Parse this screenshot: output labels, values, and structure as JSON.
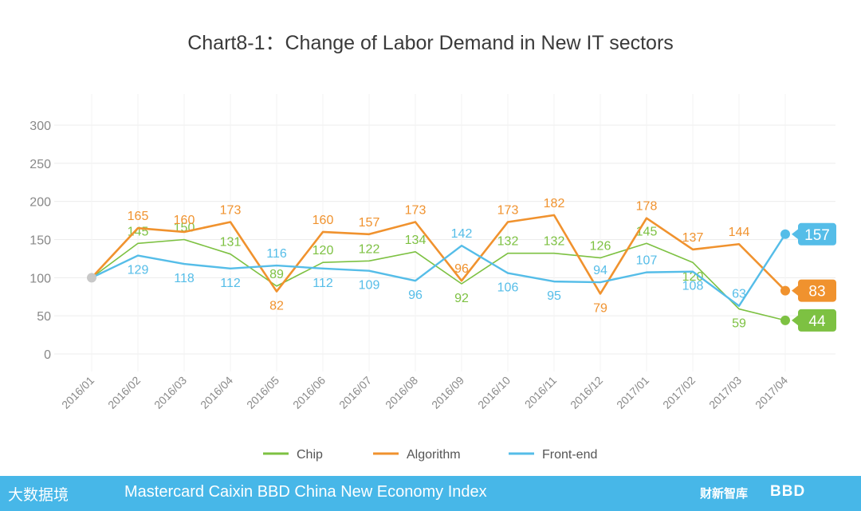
{
  "chart_data": {
    "type": "line",
    "title": "Chart8-1：Change of Labor Demand in New IT sectors",
    "categories": [
      "2016/01",
      "2016/02",
      "2016/03",
      "2016/04",
      "2016/05",
      "2016/06",
      "2016/07",
      "2016/08",
      "2016/09",
      "2016/10",
      "2016/11",
      "2016/12",
      "2017/01",
      "2017/02",
      "2017/03",
      "2017/04"
    ],
    "y_ticks": [
      "0",
      "50",
      "100",
      "150",
      "200",
      "250",
      "300"
    ],
    "ylim": [
      0,
      300
    ],
    "series": [
      {
        "name": "Chip",
        "color": "#7dc142",
        "values": [
          100,
          145,
          150,
          131,
          89,
          120,
          122,
          134,
          92,
          132,
          132,
          126,
          145,
          120,
          59,
          44
        ],
        "labels": [
          "",
          "145",
          "150",
          "131",
          "89",
          "120",
          "122",
          "134",
          "92",
          "132",
          "132",
          "126",
          "145",
          "120",
          "59",
          "44"
        ]
      },
      {
        "name": "Algorithm",
        "color": "#f0922e",
        "values": [
          100,
          165,
          160,
          173,
          82,
          160,
          157,
          173,
          96,
          173,
          182,
          79,
          178,
          137,
          144,
          83
        ],
        "labels": [
          "",
          "165",
          "160",
          "173",
          "82",
          "160",
          "157",
          "173",
          "96",
          "173",
          "182",
          "79",
          "178",
          "137",
          "144",
          "83"
        ]
      },
      {
        "name": "Front-end",
        "color": "#55bde8",
        "values": [
          100,
          129,
          118,
          112,
          116,
          112,
          109,
          96,
          142,
          106,
          95,
          94,
          107,
          108,
          63,
          157
        ],
        "labels": [
          "",
          "129",
          "118",
          "112",
          "116",
          "112",
          "109",
          "96",
          "142",
          "106",
          "95",
          "94",
          "107",
          "108",
          "63",
          "157"
        ]
      }
    ],
    "legend": [
      "Chip",
      "Algorithm",
      "Front-end"
    ],
    "legend_position": "bottom",
    "grid": true
  },
  "footer": {
    "text": "Mastercard Caixin BBD China New Economy Index",
    "logo_left": "大数据境",
    "logo_caixin": "财新智库",
    "logo_bbd": "BBD"
  },
  "colors": {
    "footer_bg": "#47b7e8",
    "grid": "#ececec",
    "start_point": "#c8c8c8"
  }
}
